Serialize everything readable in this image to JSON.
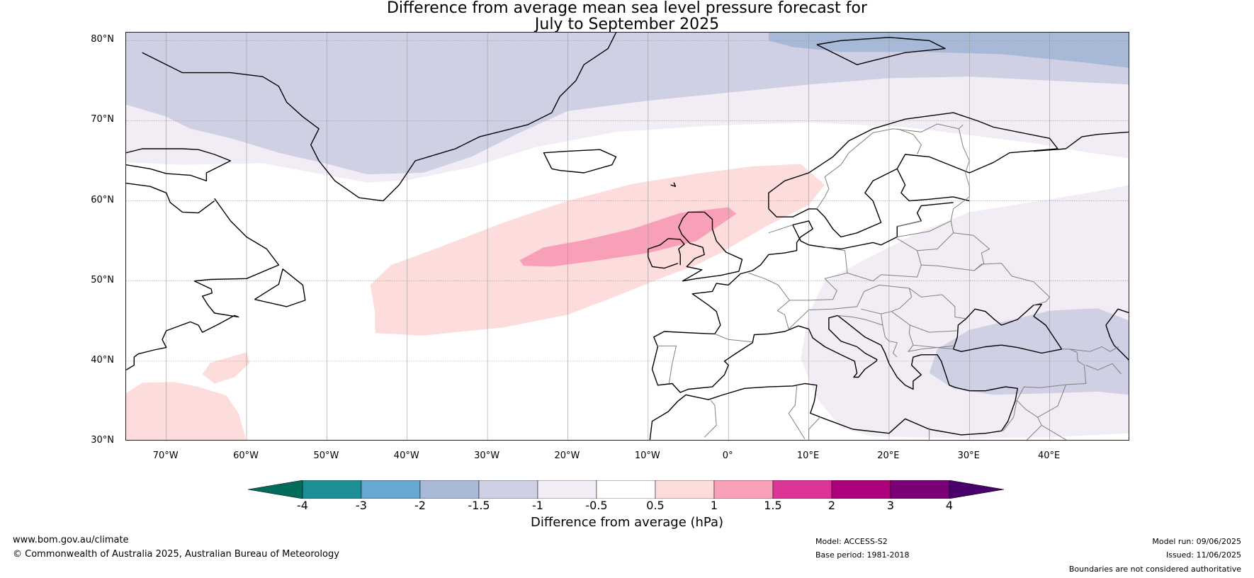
{
  "title": {
    "line1": "Difference from average mean sea level pressure forecast for",
    "line2": "July to September 2025"
  },
  "map": {
    "projection": "equirectangular",
    "lon_range": [
      -75,
      50
    ],
    "lat_range": [
      30,
      81
    ],
    "lat_labels": [
      "80°N",
      "70°N",
      "60°N",
      "50°N",
      "40°N",
      "30°N"
    ],
    "lon_labels": [
      "70°W",
      "60°W",
      "50°W",
      "40°W",
      "30°W",
      "20°W",
      "10°W",
      "0°",
      "10°E",
      "20°E",
      "30°E",
      "40°E"
    ],
    "gridlines": true,
    "colors": {
      "coast": "#000000",
      "borders": "#808080",
      "grid": "#999999",
      "lakes": "#808080"
    }
  },
  "anomaly_regions": [
    {
      "name": "greenland-negative-1-to-1.5",
      "class": "-1.5 to -1",
      "color": "#d0d0e5"
    },
    {
      "name": "svalbard-negative-1.5-to-2",
      "class": "-2 to -1.5",
      "color": "#a7b9d6"
    },
    {
      "name": "arctic-negative-0.5-to-1",
      "class": "-1 to -0.5",
      "color": "#f2ecf5"
    },
    {
      "name": "east-europe-negative-0.5-to-1",
      "class": "-1 to -0.5",
      "color": "#f2ecf5"
    },
    {
      "name": "black-sea-negative-1-to-1.5",
      "class": "-1.5 to -1",
      "color": "#d0d0e5"
    },
    {
      "name": "atlantic-positive-0.5-to-1",
      "class": "0.5 to 1",
      "color": "#fddcdc"
    },
    {
      "name": "uk-positive-1-to-1.5",
      "class": "1 to 1.5",
      "color": "#f8a0b8"
    },
    {
      "name": "subtropical-positive-0.5-to-1",
      "class": "0.5 to 1",
      "color": "#fddcdc"
    }
  ],
  "colorbar": {
    "label": "Difference from average (hPa)",
    "bounds": [
      -4,
      -3,
      -2,
      -1.5,
      -1,
      -0.5,
      0.5,
      1,
      1.5,
      2,
      3,
      4
    ],
    "tick_labels": [
      "-4",
      "-3",
      "-2",
      "-1.5",
      "-1",
      "-0.5",
      "0.5",
      "1",
      "1.5",
      "2",
      "3",
      "4"
    ],
    "colors": [
      "#1d8f96",
      "#66a8cf",
      "#a7b9d6",
      "#d0d0e5",
      "#f2ecf5",
      "#ffffff",
      "#fddcdc",
      "#f8a0b8",
      "#dd3497",
      "#ae017e",
      "#7a0177"
    ],
    "under_color": "#016c59",
    "over_color": "#49006a",
    "extend": "both"
  },
  "footer": {
    "website": "www.bom.gov.au/climate",
    "copyright": "© Commonwealth of Australia 2025, Australian Bureau of Meteorology",
    "model": "Model: ACCESS-S2",
    "base_period": "Base period: 1981-2018",
    "model_run": "Model run: 09/06/2025",
    "issued": "Issued: 11/06/2025",
    "disclaimer": "Boundaries are not considered authoritative"
  }
}
